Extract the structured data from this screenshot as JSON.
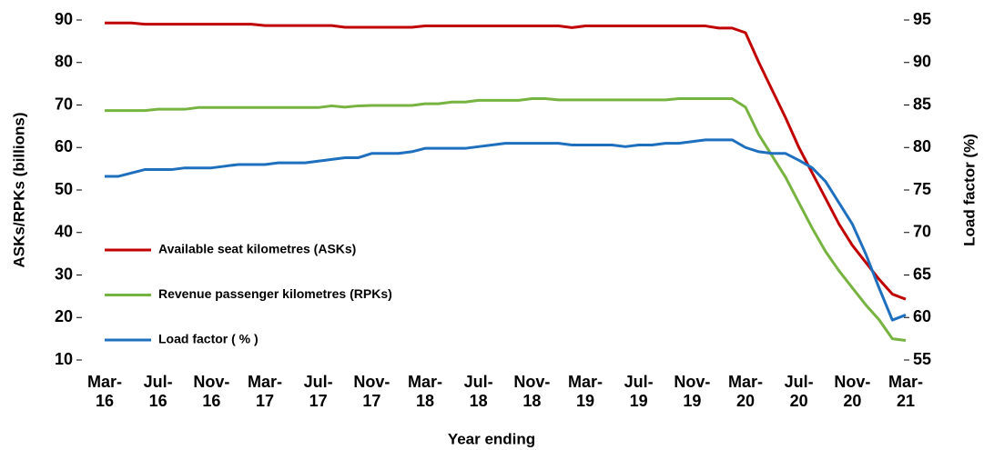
{
  "chart_data": {
    "type": "line",
    "x_label": "Year ending",
    "y_label": "ASKs/RPKs (billions)",
    "y2_label": "Load factor (%)",
    "categories": [
      "Mar-16",
      null,
      null,
      null,
      "Jul-16",
      null,
      null,
      null,
      "Nov-16",
      null,
      null,
      null,
      "Mar-17",
      null,
      null,
      null,
      "Jul-17",
      null,
      null,
      null,
      "Nov-17",
      null,
      null,
      null,
      "Mar-18",
      null,
      null,
      null,
      "Jul-18",
      null,
      null,
      null,
      "Nov-18",
      null,
      null,
      null,
      "Mar-19",
      null,
      null,
      null,
      "Jul-19",
      null,
      null,
      null,
      "Nov-19",
      null,
      null,
      null,
      "Mar-20",
      null,
      null,
      null,
      "Jul-20",
      null,
      null,
      null,
      "Nov-20",
      null,
      null,
      null,
      "Mar-21"
    ],
    "ylim": [
      10,
      90
    ],
    "yticks": [
      10,
      20,
      30,
      40,
      50,
      60,
      70,
      80,
      90
    ],
    "y2lim": [
      55,
      95
    ],
    "y2ticks": [
      55,
      60,
      65,
      70,
      75,
      80,
      85,
      90,
      95
    ],
    "legend": "lower left",
    "series": [
      {
        "name": "Available seat kilometres (ASKs)",
        "color": "#c00000",
        "values": [
          89.3,
          89.3,
          89.3,
          89,
          89,
          89,
          89,
          89,
          89,
          89,
          89,
          89,
          88.7,
          88.7,
          88.7,
          88.7,
          88.7,
          88.7,
          88.3,
          88.3,
          88.3,
          88.3,
          88.3,
          88.3,
          88.6,
          88.6,
          88.6,
          88.6,
          88.6,
          88.6,
          88.6,
          88.6,
          88.6,
          88.6,
          88.6,
          88.2,
          88.6,
          88.6,
          88.6,
          88.6,
          88.6,
          88.6,
          88.6,
          88.6,
          88.6,
          88.6,
          88.1,
          88.1,
          87,
          80,
          73.5,
          67,
          60,
          54,
          48,
          42,
          37,
          33,
          29,
          25.5,
          24.3
        ]
      },
      {
        "name": "Revenue passenger kilometres (RPKs)",
        "color": "#77b341",
        "values": [
          68.7,
          68.7,
          68.7,
          68.7,
          69,
          69,
          69,
          69.4,
          69.4,
          69.4,
          69.4,
          69.4,
          69.4,
          69.4,
          69.4,
          69.4,
          69.4,
          69.8,
          69.5,
          69.8,
          69.9,
          69.9,
          69.9,
          69.9,
          70.3,
          70.3,
          70.7,
          70.7,
          71.1,
          71.1,
          71.1,
          71.1,
          71.5,
          71.5,
          71.2,
          71.2,
          71.2,
          71.2,
          71.2,
          71.2,
          71.2,
          71.2,
          71.2,
          71.5,
          71.5,
          71.5,
          71.5,
          71.5,
          69.5,
          63,
          58,
          53,
          47,
          41,
          35.5,
          31,
          27,
          23,
          19.5,
          15,
          14.6
        ]
      },
      {
        "name": "Load factor ( % )",
        "color": "#1f6fbf",
        "axis": "y2",
        "values": [
          76.6,
          76.6,
          77,
          77.4,
          77.4,
          77.4,
          77.6,
          77.6,
          77.6,
          77.8,
          78,
          78,
          78,
          78.2,
          78.2,
          78.2,
          78.4,
          78.6,
          78.8,
          78.8,
          79.3,
          79.3,
          79.3,
          79.5,
          79.9,
          79.9,
          79.9,
          79.9,
          80.1,
          80.3,
          80.5,
          80.5,
          80.5,
          80.5,
          80.5,
          80.3,
          80.3,
          80.3,
          80.3,
          80.1,
          80.3,
          80.3,
          80.5,
          80.5,
          80.7,
          80.9,
          80.9,
          80.9,
          80,
          79.5,
          79.3,
          79.3,
          78.5,
          77.6,
          76,
          73.5,
          71,
          67.5,
          63.5,
          59.7,
          60.3
        ]
      }
    ]
  }
}
